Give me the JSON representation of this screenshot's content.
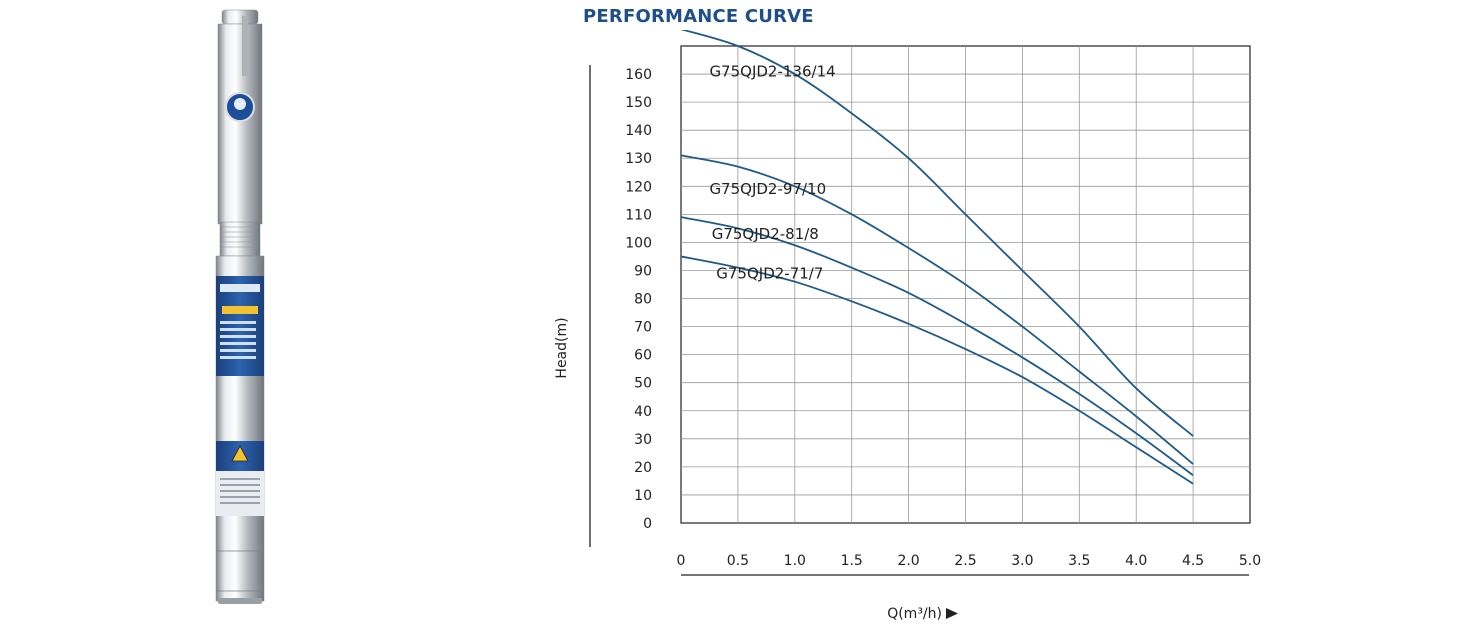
{
  "title": "PERFORMANCE CURVE",
  "colors": {
    "curve": "#1f5a8a",
    "grid": "#999999",
    "title": "#1f4e8c",
    "accent": "#1a5bb0"
  },
  "chart_data": {
    "type": "line",
    "xlabel": "Q(m³/h)",
    "ylabel": "Head(m)",
    "xlim": [
      0,
      5.0
    ],
    "ylim": [
      0,
      170
    ],
    "xticks": [
      "0",
      "0.5",
      "1.0",
      "1.5",
      "2.0",
      "2.5",
      "3.0",
      "3.5",
      "4.0",
      "4.5",
      "5.0"
    ],
    "yticks": [
      "0",
      "10",
      "20",
      "30",
      "40",
      "50",
      "60",
      "70",
      "80",
      "90",
      "100",
      "110",
      "120",
      "130",
      "140",
      "150",
      "160"
    ],
    "grid": true,
    "series": [
      {
        "name": "G75QJD2-136/14",
        "x": [
          0,
          0.5,
          1.0,
          1.5,
          2.0,
          2.5,
          3.0,
          3.5,
          4.0,
          4.5
        ],
        "y": [
          176,
          170,
          160,
          146,
          130,
          110,
          90,
          70,
          48,
          31
        ]
      },
      {
        "name": "G75QJD2-97/10",
        "x": [
          0,
          0.5,
          1.0,
          1.5,
          2.0,
          2.5,
          3.0,
          3.5,
          4.0,
          4.5
        ],
        "y": [
          131,
          127,
          120,
          110,
          98,
          85,
          70,
          54,
          38,
          21
        ]
      },
      {
        "name": "G75QJD2-81/8",
        "x": [
          0,
          0.5,
          1.0,
          1.5,
          2.0,
          2.5,
          3.0,
          3.5,
          4.0,
          4.5
        ],
        "y": [
          109,
          105,
          99,
          91,
          82,
          71,
          59,
          46,
          32,
          17
        ]
      },
      {
        "name": "G75QJD2-71/7",
        "x": [
          0,
          0.5,
          1.0,
          1.5,
          2.0,
          2.5,
          3.0,
          3.5,
          4.0,
          4.5
        ],
        "y": [
          95,
          91,
          86,
          79,
          71,
          62,
          52,
          40,
          27,
          14
        ]
      }
    ]
  }
}
